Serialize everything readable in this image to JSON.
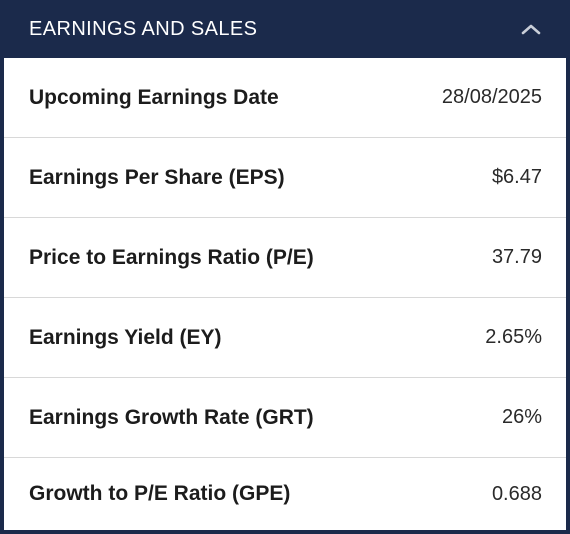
{
  "header": {
    "title": "EARNINGS AND SALES",
    "collapse_icon": "chevron-up-icon"
  },
  "colors": {
    "header_background": "#1b2a4b",
    "row_background": "#ffffff",
    "divider": "#d8d8d8"
  },
  "rows": [
    {
      "label": "Upcoming Earnings Date",
      "value": "28/08/2025"
    },
    {
      "label": "Earnings Per Share (EPS)",
      "value": "$6.47"
    },
    {
      "label": "Price to Earnings Ratio (P/E)",
      "value": "37.79"
    },
    {
      "label": "Earnings Yield (EY)",
      "value": "2.65%"
    },
    {
      "label": "Earnings Growth Rate (GRT)",
      "value": "26%"
    },
    {
      "label": "Growth to P/E Ratio (GPE)",
      "value": "0.688"
    }
  ]
}
